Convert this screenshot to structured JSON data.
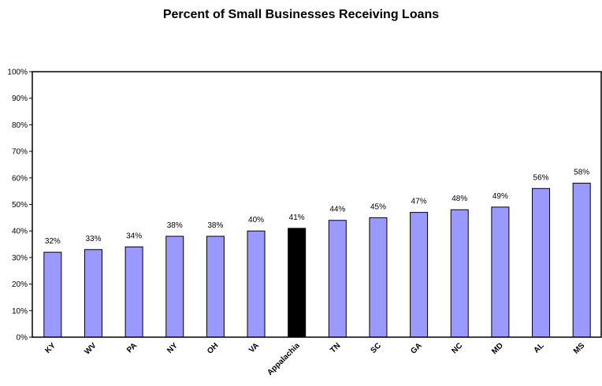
{
  "chart_data": {
    "type": "bar",
    "title": "Percent of Small Businesses Receiving Loans",
    "xlabel": "",
    "ylabel": "",
    "categories": [
      "KY",
      "WV",
      "PA",
      "NY",
      "OH",
      "VA",
      "Appalachia",
      "TN",
      "SC",
      "GA",
      "NC",
      "MD",
      "AL",
      "MS"
    ],
    "values": [
      32,
      33,
      34,
      38,
      38,
      40,
      41,
      44,
      45,
      47,
      48,
      49,
      56,
      58
    ],
    "data_labels": [
      "32%",
      "33%",
      "34%",
      "38%",
      "38%",
      "40%",
      "41%",
      "44%",
      "45%",
      "47%",
      "48%",
      "49%",
      "56%",
      "58%"
    ],
    "ylim": [
      0,
      100
    ],
    "yticks": [
      "0%",
      "10%",
      "20%",
      "30%",
      "40%",
      "50%",
      "60%",
      "70%",
      "80%",
      "90%",
      "100%"
    ],
    "highlight_category": "Appalachia",
    "grid": false,
    "colors": {
      "bar": "#9999ff",
      "highlight": "#000000",
      "outline": "#000000"
    }
  }
}
